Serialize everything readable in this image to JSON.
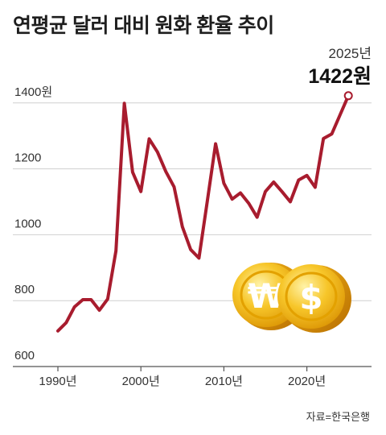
{
  "chart_data": {
    "type": "line",
    "title": "연평균 달러 대비 원화 환율 추이",
    "source": "자료=한국은행",
    "y_unit": "원",
    "x_unit": "년",
    "ylim": [
      600,
      1450
    ],
    "yticks": [
      600,
      800,
      1000,
      1200,
      1400
    ],
    "ytick_labels": [
      "600",
      "800",
      "1000",
      "1200",
      "1400원"
    ],
    "xticks": [
      1990,
      2000,
      2010,
      2020
    ],
    "xtick_labels": [
      "1990년",
      "2000년",
      "2010년",
      "2020년"
    ],
    "grid": true,
    "line_color": "#a81c2e",
    "x": [
      1990,
      1991,
      1992,
      1993,
      1994,
      1995,
      1996,
      1997,
      1998,
      1999,
      2000,
      2001,
      2002,
      2003,
      2004,
      2005,
      2006,
      2007,
      2008,
      2009,
      2010,
      2011,
      2012,
      2013,
      2014,
      2015,
      2016,
      2017,
      2018,
      2019,
      2020,
      2021,
      2022,
      2023,
      2024,
      2025
    ],
    "values": [
      708,
      733,
      781,
      803,
      803,
      771,
      805,
      951,
      1399,
      1190,
      1131,
      1291,
      1251,
      1192,
      1145,
      1024,
      955,
      929,
      1102,
      1276,
      1156,
      1108,
      1127,
      1095,
      1053,
      1131,
      1160,
      1131,
      1100,
      1166,
      1180,
      1144,
      1292,
      1306,
      1364,
      1422
    ],
    "highlight": {
      "year_label": "2025년",
      "value_label": "1422원"
    }
  }
}
